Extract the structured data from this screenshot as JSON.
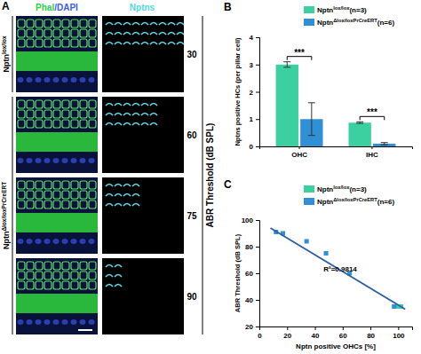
{
  "figure_panel": {
    "panel_label": "A",
    "channels": [
      "Phal/DAPI",
      "Nptns"
    ],
    "groups": [
      {
        "label": "Nptnlox/lox",
        "thresholds": [
          30
        ]
      },
      {
        "label": "NptnΔlox/loxPrCreERT",
        "thresholds": [
          60,
          75,
          90
        ]
      }
    ],
    "axis_label": "ABR Threshold (dB SPL)"
  },
  "chart_data": [
    {
      "type": "bar",
      "panel_label": "B",
      "categories": [
        "OHC",
        "IHC"
      ],
      "ylabel": "Nptns positive HCs (per pillar cell)",
      "ylim": [
        0,
        4
      ],
      "yticks": [
        0,
        1,
        2,
        3,
        4
      ],
      "legend": "top-right",
      "annotations": [
        "***",
        "***"
      ],
      "series": [
        {
          "name": "Nptnlox/lox(n=3)",
          "color": "#3ccfa0",
          "values": [
            3.0,
            0.87
          ],
          "errors": [
            0.1,
            0.03
          ]
        },
        {
          "name": "NptnΔlox/loxPrCreERT(n=6)",
          "color": "#2f90d6",
          "values": [
            1.0,
            0.1
          ],
          "errors": [
            0.6,
            0.04
          ]
        }
      ]
    },
    {
      "type": "scatter",
      "panel_label": "C",
      "xlabel": "Nptn positive OHCs [%]",
      "ylabel": "ABR Threshold (dB SPL)",
      "xlim": [
        0,
        110
      ],
      "xticks": [
        0,
        20,
        40,
        60,
        80,
        100
      ],
      "ylim": [
        20,
        100
      ],
      "yticks": [
        20,
        40,
        60,
        80,
        100
      ],
      "legend": "top-right",
      "annotations": [
        "R²=0.9814"
      ],
      "series": [
        {
          "name": "Nptnlox/lox(n=3)",
          "color": "#3ccfa0",
          "marker": "square",
          "x": [
            98,
            100,
            102
          ],
          "values": [
            35,
            35,
            35
          ]
        },
        {
          "name": "NptnΔlox/loxPrCreERT(n=6)",
          "color": "#2f90d6",
          "marker": "square",
          "x": [
            12,
            17,
            34,
            48,
            65,
            97
          ],
          "values": [
            91,
            90,
            84,
            75,
            60,
            35
          ]
        },
        {
          "type": "line",
          "color": "#2f5fa8",
          "x": [
            8,
            105
          ],
          "values": [
            94,
            33
          ]
        }
      ]
    }
  ]
}
